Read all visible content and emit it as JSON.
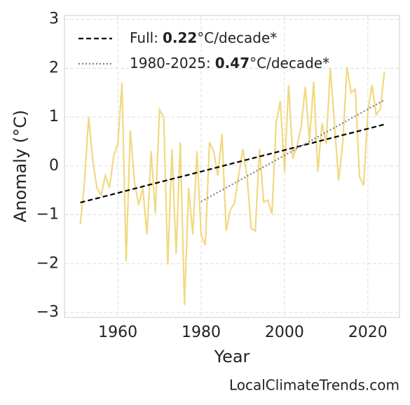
{
  "chart_data": {
    "type": "line",
    "xlabel": "Year",
    "ylabel": "Anomaly (°C)",
    "watermark": "LocalClimateTrends.com",
    "x": [
      1951,
      1952,
      1953,
      1954,
      1955,
      1956,
      1957,
      1958,
      1959,
      1960,
      1961,
      1962,
      1963,
      1964,
      1965,
      1966,
      1967,
      1968,
      1969,
      1970,
      1971,
      1972,
      1973,
      1974,
      1975,
      1976,
      1977,
      1978,
      1979,
      1980,
      1981,
      1982,
      1983,
      1984,
      1985,
      1986,
      1987,
      1988,
      1989,
      1990,
      1991,
      1992,
      1993,
      1994,
      1995,
      1996,
      1997,
      1998,
      1999,
      2000,
      2001,
      2002,
      2003,
      2004,
      2005,
      2006,
      2007,
      2008,
      2009,
      2010,
      2011,
      2012,
      2013,
      2014,
      2015,
      2016,
      2017,
      2018,
      2019,
      2020,
      2021,
      2022,
      2023,
      2024
    ],
    "series": [
      {
        "color": "#f0d77a",
        "values": [
          -1.19,
          -0.33,
          1.0,
          0.1,
          -0.45,
          -0.6,
          -0.2,
          -0.45,
          0.2,
          0.45,
          1.7,
          -1.95,
          0.73,
          -0.33,
          -0.8,
          -0.45,
          -1.4,
          0.3,
          -0.97,
          1.15,
          1.0,
          -2.02,
          0.35,
          -1.8,
          0.48,
          -2.85,
          -0.45,
          -1.4,
          0.3,
          -1.42,
          -1.62,
          0.48,
          0.3,
          -0.2,
          0.65,
          -1.33,
          -0.9,
          -0.76,
          -0.2,
          0.35,
          -0.2,
          -1.28,
          -1.33,
          0.35,
          -0.74,
          -0.7,
          -0.98,
          0.88,
          1.33,
          -0.12,
          1.66,
          0.15,
          0.42,
          0.8,
          1.62,
          0.5,
          1.72,
          -0.12,
          0.87,
          0.45,
          2.0,
          0.85,
          -0.3,
          0.5,
          2.02,
          1.5,
          1.57,
          -0.22,
          -0.4,
          1.1,
          1.66,
          1.05,
          1.17,
          1.93
        ]
      }
    ],
    "trends": [
      {
        "label": "Full:",
        "slope": 0.22,
        "unit": "°C/decade*",
        "color": "#000000",
        "style": "dashed",
        "x": [
          1951,
          2024
        ],
        "values": [
          -0.75,
          0.85
        ]
      },
      {
        "label": "1980-2025:",
        "slope": 0.47,
        "unit": "°C/decade*",
        "color": "#808080",
        "style": "dotted",
        "x": [
          1980,
          2024
        ],
        "values": [
          -0.73,
          1.35
        ]
      }
    ],
    "xlim": [
      1947.2,
      2027.6
    ],
    "xticks": [
      1960,
      1980,
      2000,
      2020
    ],
    "ylim": [
      -3.1,
      3.08
    ],
    "yticks": [
      {
        "value": -3,
        "label": "−3"
      },
      {
        "value": -2,
        "label": "−2"
      },
      {
        "value": -1,
        "label": "−1"
      },
      0,
      1,
      2,
      3
    ],
    "grid": true,
    "legend": "upper-left"
  }
}
